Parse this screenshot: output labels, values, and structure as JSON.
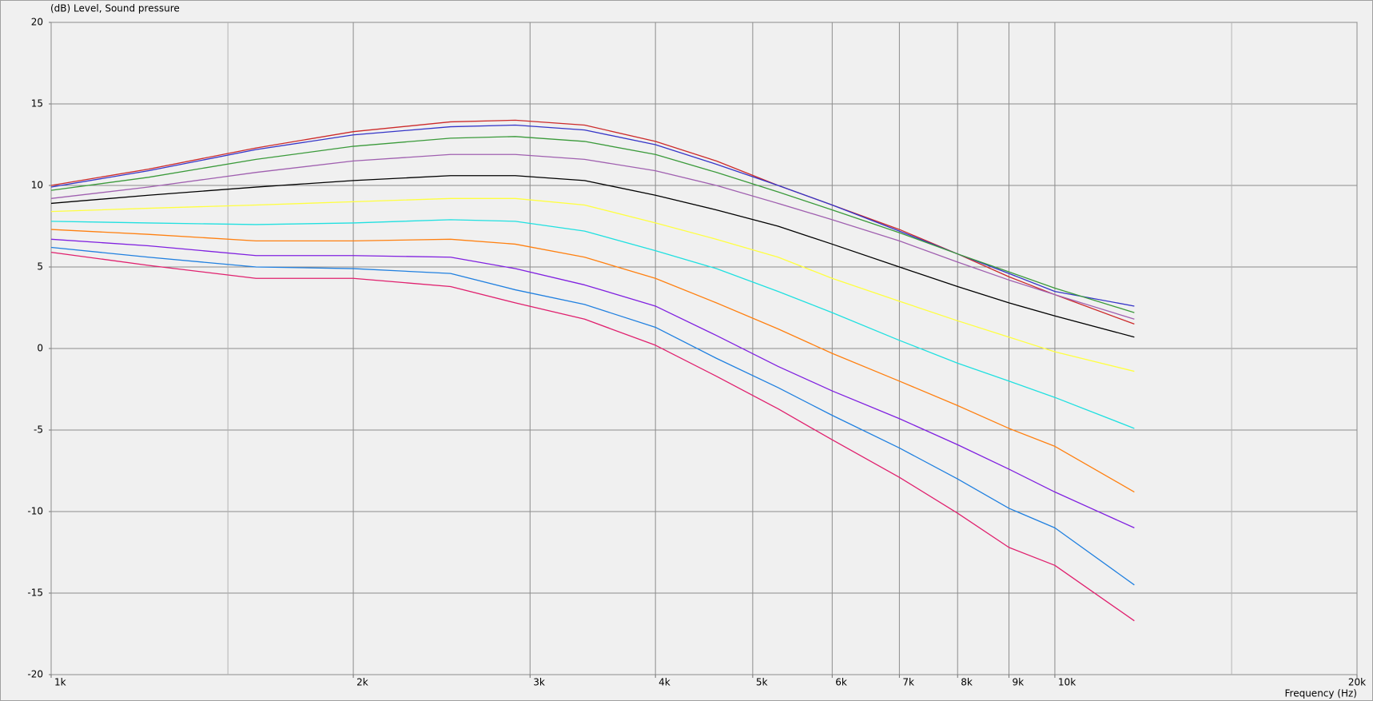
{
  "chart_data": {
    "type": "line",
    "y_label": "(dB)  Level, Sound pressure",
    "x_label": "Frequency  (Hz)",
    "log_x": true,
    "grid": true,
    "x": [
      1000,
      1250,
      1600,
      2000,
      2500,
      2900,
      3400,
      4000,
      4600,
      5300,
      6000,
      7000,
      8000,
      9000,
      10000,
      12000
    ],
    "xlim": [
      1000,
      20000
    ],
    "xticks": [
      {
        "value": 1000,
        "label": "1k"
      },
      {
        "value": 2000,
        "label": "2k"
      },
      {
        "value": 3000,
        "label": "3k"
      },
      {
        "value": 4000,
        "label": "4k"
      },
      {
        "value": 5000,
        "label": "5k"
      },
      {
        "value": 6000,
        "label": "6k"
      },
      {
        "value": 7000,
        "label": "7k"
      },
      {
        "value": 8000,
        "label": "8k"
      },
      {
        "value": 9000,
        "label": "9k"
      },
      {
        "value": 10000,
        "label": "10k"
      },
      {
        "value": 20000,
        "label": "20k"
      }
    ],
    "minor_xticks": [
      1500,
      15000
    ],
    "ylim": [
      -20,
      20
    ],
    "yticks": [
      -20,
      -15,
      -10,
      -5,
      0,
      5,
      10,
      15,
      20
    ],
    "series": [
      {
        "color": "#cc2a2a",
        "values": [
          10.0,
          11.0,
          12.3,
          13.3,
          13.9,
          14.0,
          13.7,
          12.7,
          11.5,
          10.0,
          8.8,
          7.3,
          5.8,
          4.4,
          3.3,
          1.5
        ]
      },
      {
        "color": "#3535c8",
        "values": [
          9.9,
          10.9,
          12.2,
          13.1,
          13.6,
          13.7,
          13.4,
          12.5,
          11.3,
          10.0,
          8.8,
          7.2,
          5.8,
          4.6,
          3.5,
          2.6
        ]
      },
      {
        "color": "#3a9a3a",
        "values": [
          9.7,
          10.5,
          11.6,
          12.4,
          12.9,
          13.0,
          12.7,
          11.9,
          10.8,
          9.6,
          8.5,
          7.1,
          5.8,
          4.7,
          3.7,
          2.2
        ]
      },
      {
        "color": "#a060b0",
        "values": [
          9.2,
          9.9,
          10.8,
          11.5,
          11.9,
          11.9,
          11.6,
          10.9,
          10.0,
          8.9,
          7.9,
          6.6,
          5.3,
          4.2,
          3.3,
          1.8
        ]
      },
      {
        "color": "#000000",
        "values": [
          8.9,
          9.4,
          9.9,
          10.3,
          10.6,
          10.6,
          10.3,
          9.4,
          8.5,
          7.5,
          6.4,
          5.0,
          3.8,
          2.8,
          2.0,
          0.7
        ]
      },
      {
        "color": "#ffff40",
        "values": [
          8.4,
          8.6,
          8.8,
          9.0,
          9.2,
          9.2,
          8.8,
          7.7,
          6.7,
          5.6,
          4.3,
          2.9,
          1.7,
          0.7,
          -0.2,
          -1.4
        ]
      },
      {
        "color": "#20e0e0",
        "values": [
          7.8,
          7.7,
          7.6,
          7.7,
          7.9,
          7.8,
          7.2,
          6.0,
          4.9,
          3.5,
          2.2,
          0.5,
          -0.9,
          -2.0,
          -3.0,
          -4.9
        ]
      },
      {
        "color": "#ff8010",
        "values": [
          7.3,
          7.0,
          6.6,
          6.6,
          6.7,
          6.4,
          5.6,
          4.3,
          2.8,
          1.2,
          -0.3,
          -2.0,
          -3.5,
          -4.9,
          -6.0,
          -8.8
        ]
      },
      {
        "color": "#8020e0",
        "values": [
          6.7,
          6.3,
          5.7,
          5.7,
          5.6,
          4.9,
          3.9,
          2.6,
          0.8,
          -1.1,
          -2.6,
          -4.3,
          -5.9,
          -7.4,
          -8.8,
          -11.0
        ]
      },
      {
        "color": "#2080e0",
        "values": [
          6.2,
          5.6,
          5.0,
          4.9,
          4.6,
          3.6,
          2.7,
          1.3,
          -0.6,
          -2.4,
          -4.1,
          -6.1,
          -8.0,
          -9.8,
          -11.0,
          -14.5
        ]
      },
      {
        "color": "#e0206e",
        "values": [
          5.9,
          5.1,
          4.3,
          4.3,
          3.8,
          2.8,
          1.8,
          0.2,
          -1.7,
          -3.7,
          -5.6,
          -7.9,
          -10.1,
          -12.2,
          -13.3,
          -16.7
        ]
      }
    ]
  }
}
